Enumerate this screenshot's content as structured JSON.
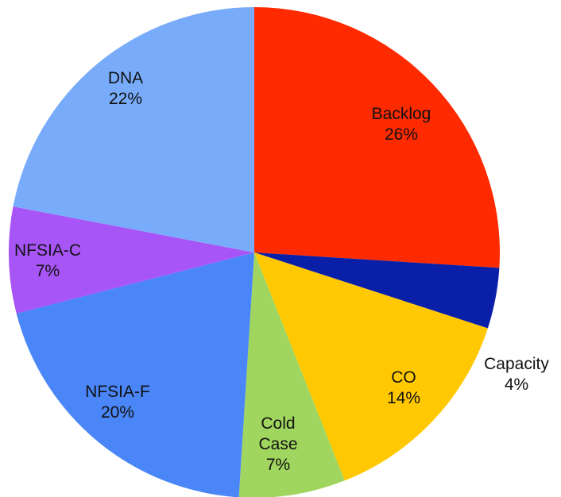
{
  "chart_data": {
    "type": "pie",
    "categories": [
      "Backlog",
      "Capacity",
      "CO",
      "Cold Case",
      "NFSIA-F",
      "NFSIA-C",
      "DNA"
    ],
    "values": [
      26,
      4,
      14,
      7,
      20,
      7,
      22
    ],
    "value_labels": [
      "26%",
      "4%",
      "14%",
      "7%",
      "20%",
      "7%",
      "22%"
    ],
    "colors": [
      "#ff2a00",
      "#0a1fa8",
      "#ffc800",
      "#a0d65f",
      "#4a86f7",
      "#a855f7",
      "#78acfb"
    ]
  }
}
